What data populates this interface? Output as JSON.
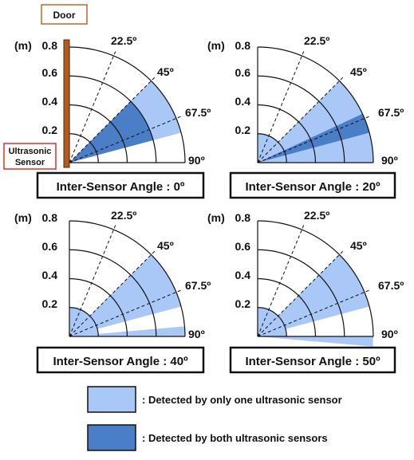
{
  "door_label": "Door",
  "sensor_label": [
    "Ultrasonic",
    "Sensor"
  ],
  "unit_label": "(m)",
  "y_ticks": [
    "0.8",
    "0.6",
    "0.4",
    "0.2"
  ],
  "angle_labels": [
    "22.5º",
    "45º",
    "67.5º",
    "90º"
  ],
  "panels": [
    {
      "caption": "Inter-Sensor Angle : 0º",
      "inter_sensor_angle_deg": 0
    },
    {
      "caption": "Inter-Sensor Angle : 20º",
      "inter_sensor_angle_deg": 20
    },
    {
      "caption": "Inter-Sensor Angle : 40º",
      "inter_sensor_angle_deg": 40
    },
    {
      "caption": "Inter-Sensor Angle : 50º",
      "inter_sensor_angle_deg": 50
    }
  ],
  "legend": [
    {
      "label": ": Detected by only one ultrasonic sensor",
      "color": "#aac8f7"
    },
    {
      "label": ": Detected by both ultrasonic sensors",
      "color": "#4a7ec7"
    }
  ],
  "colors": {
    "light": "#aac8f7",
    "dark": "#4a7ec7",
    "door": "#b35a1e",
    "door_box": "#c0652a",
    "sensor_box": "#e0302a"
  }
}
